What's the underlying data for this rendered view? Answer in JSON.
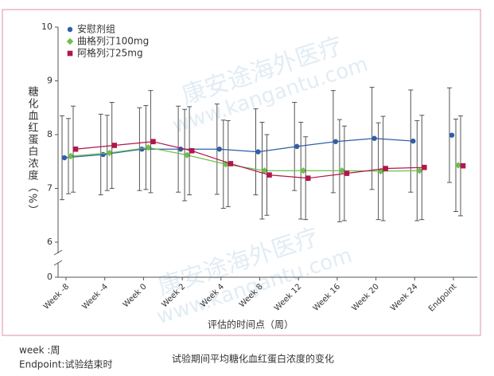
{
  "chart_data": {
    "type": "errorbar-line",
    "y_label": "糖化血红蛋白浓度（%）",
    "x_label": "评估的时间点（周）",
    "watermark": [
      "康安途海外医疗",
      "www.kangantu.com"
    ],
    "categories": [
      "Week -8",
      "Week -4",
      "Week 0",
      "Week 2",
      "Week 4",
      "Week 8",
      "Week 12",
      "Week 16",
      "Week 20",
      "Week 24",
      "Endpoint"
    ],
    "ylim": [
      0,
      10
    ],
    "yticks": [
      0,
      6,
      7,
      8,
      9,
      10
    ],
    "legend": "top-left",
    "series": [
      {
        "name": "安慰剂组",
        "color": "#2e5fa8",
        "marker": "circle",
        "values": [
          7.57,
          7.63,
          7.73,
          7.73,
          7.73,
          7.68,
          7.78,
          7.87,
          7.93,
          7.88,
          7.99
        ],
        "errors": [
          0.78,
          0.75,
          0.77,
          0.8,
          0.84,
          0.8,
          0.82,
          0.95,
          0.95,
          0.95,
          0.88
        ]
      },
      {
        "name": "曲格列汀100mg",
        "color": "#6cc04a",
        "marker": "diamond",
        "values": [
          7.6,
          7.66,
          7.76,
          7.62,
          7.45,
          7.33,
          7.33,
          7.33,
          7.32,
          7.33,
          7.43
        ],
        "errors": [
          0.7,
          0.7,
          0.78,
          0.85,
          0.82,
          0.9,
          0.9,
          0.95,
          0.9,
          0.93,
          0.86
        ]
      },
      {
        "name": "阿格列汀25mg",
        "color": "#b0174a",
        "marker": "square",
        "values": [
          7.73,
          7.8,
          7.87,
          7.7,
          7.46,
          7.25,
          7.19,
          7.28,
          7.37,
          7.39,
          7.42
        ],
        "errors": [
          0.8,
          0.8,
          0.95,
          0.82,
          0.8,
          0.75,
          0.77,
          0.88,
          0.97,
          0.97,
          0.93
        ]
      }
    ]
  },
  "notes": [
    "week :周",
    "Endpoint:试验结束时"
  ],
  "caption": "试验期间平均糖化血红蛋白浓度的变化"
}
